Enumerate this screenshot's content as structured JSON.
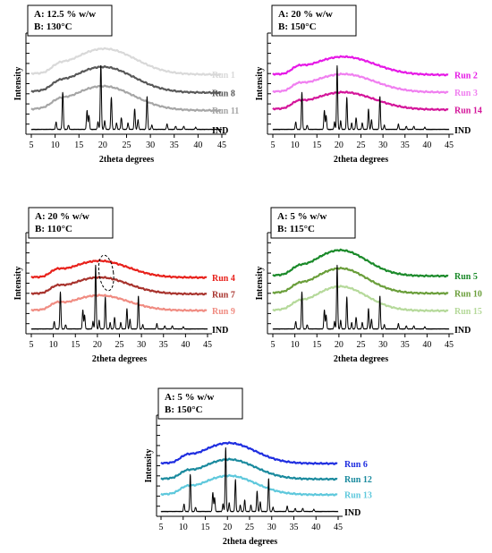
{
  "chart_data": [
    {
      "type": "line",
      "legend": [
        "A: 12.5 % w/w",
        "B: 130°C"
      ],
      "xlabel": "2theta degrees",
      "ylabel": "Intensity",
      "xlim": [
        5,
        45
      ],
      "x_ticks": [
        5,
        10,
        15,
        20,
        25,
        30,
        35,
        40,
        45
      ],
      "series": [
        {
          "name": "Run 1",
          "kind": "amorphous",
          "color": "#d9d9d9",
          "offset": 3,
          "hump_center": 20.3,
          "hump_height": 1.7,
          "hump_width": 6.5,
          "base_level": 0.55
        },
        {
          "name": "Run 8",
          "kind": "amorphous",
          "color": "#595959",
          "offset": 2,
          "hump_center": 20.0,
          "hump_height": 1.7,
          "hump_width": 6.5,
          "base_level": 0.4
        },
        {
          "name": "Run 11",
          "kind": "amorphous",
          "color": "#a6a6a6",
          "offset": 1,
          "hump_center": 20.0,
          "hump_height": 1.6,
          "hump_width": 6.5,
          "base_level": 0.3
        },
        {
          "name": "IND",
          "kind": "crystalline",
          "color": "#000000",
          "offset": 0
        }
      ]
    },
    {
      "type": "line",
      "legend": [
        "A: 20 % w/w",
        "B: 150°C"
      ],
      "xlabel": "2theta degrees",
      "ylabel": "Intensity",
      "xlim": [
        5,
        45
      ],
      "x_ticks": [
        5,
        10,
        15,
        20,
        25,
        30,
        35,
        40,
        45
      ],
      "series": [
        {
          "name": "Run 2",
          "kind": "amorphous",
          "color": "#e619e6",
          "offset": 3,
          "hump_center": 21.0,
          "hump_height": 1.2,
          "hump_width": 7.0,
          "base_level": 0.5
        },
        {
          "name": "Run 3",
          "kind": "amorphous",
          "color": "#f07ff0",
          "offset": 2,
          "hump_center": 21.0,
          "hump_height": 1.2,
          "hump_width": 7.0,
          "base_level": 0.45
        },
        {
          "name": "Run 14",
          "kind": "amorphous",
          "color": "#d4159a",
          "offset": 1,
          "hump_center": 21.0,
          "hump_height": 1.15,
          "hump_width": 7.0,
          "base_level": 0.4
        },
        {
          "name": "IND",
          "kind": "crystalline",
          "color": "#000000",
          "offset": 0
        }
      ]
    },
    {
      "type": "line",
      "legend": [
        "A: 20 % w/w",
        "B: 110°C"
      ],
      "xlabel": "2theta degrees",
      "ylabel": "Intensity",
      "xlim": [
        5,
        45
      ],
      "x_ticks": [
        5,
        10,
        15,
        20,
        25,
        30,
        35,
        40,
        45
      ],
      "annotation": "dashed ellipse near 22 degrees",
      "series": [
        {
          "name": "Run 4",
          "kind": "amorphous",
          "color": "#e8211b",
          "offset": 3,
          "hump_center": 20.5,
          "hump_height": 1.1,
          "hump_width": 6.5,
          "base_level": 0.45
        },
        {
          "name": "Run 7",
          "kind": "amorphous",
          "color": "#a8332d",
          "offset": 2,
          "hump_center": 20.5,
          "hump_height": 1.1,
          "hump_width": 6.5,
          "base_level": 0.4
        },
        {
          "name": "Run 9",
          "kind": "amorphous",
          "color": "#f08c82",
          "offset": 1,
          "hump_center": 20.5,
          "hump_height": 1.0,
          "hump_width": 6.5,
          "base_level": 0.35
        },
        {
          "name": "IND",
          "kind": "crystalline",
          "color": "#000000",
          "offset": 0
        }
      ]
    },
    {
      "type": "line",
      "legend": [
        "A: 5 % w/w",
        "B: 115°C"
      ],
      "xlabel": "2theta degrees",
      "ylabel": "Intensity",
      "xlim": [
        5,
        45
      ],
      "x_ticks": [
        5,
        10,
        15,
        20,
        25,
        30,
        35,
        40,
        45
      ],
      "series": [
        {
          "name": "Run 5",
          "kind": "amorphous",
          "color": "#1b8a2a",
          "offset": 3,
          "hump_center": 20.3,
          "hump_height": 1.7,
          "hump_width": 6.0,
          "base_level": 0.3
        },
        {
          "name": "Run 10",
          "kind": "amorphous",
          "color": "#6a9e3a",
          "offset": 2,
          "hump_center": 20.3,
          "hump_height": 1.65,
          "hump_width": 6.0,
          "base_level": 0.25
        },
        {
          "name": "Run 15",
          "kind": "amorphous",
          "color": "#b5d99a",
          "offset": 1,
          "hump_center": 20.3,
          "hump_height": 1.6,
          "hump_width": 6.0,
          "base_level": 0.2
        },
        {
          "name": "IND",
          "kind": "crystalline",
          "color": "#000000",
          "offset": 0
        }
      ]
    },
    {
      "type": "line",
      "legend": [
        "A: 5 % w/w",
        "B: 150°C"
      ],
      "xlabel": "2theta degrees",
      "ylabel": "Intensity",
      "xlim": [
        5,
        45
      ],
      "x_ticks": [
        5,
        10,
        15,
        20,
        25,
        30,
        35,
        40,
        45
      ],
      "series": [
        {
          "name": "Run 6",
          "kind": "amorphous",
          "color": "#1f2ee0",
          "offset": 3,
          "hump_center": 20.3,
          "hump_height": 1.35,
          "hump_width": 6.0,
          "base_level": 0.35
        },
        {
          "name": "Run 12",
          "kind": "amorphous",
          "color": "#1a8a9e",
          "offset": 2,
          "hump_center": 20.3,
          "hump_height": 1.3,
          "hump_width": 6.0,
          "base_level": 0.3
        },
        {
          "name": "Run 13",
          "kind": "amorphous",
          "color": "#5ec8dc",
          "offset": 1,
          "hump_center": 20.3,
          "hump_height": 1.25,
          "hump_width": 6.0,
          "base_level": 0.25
        },
        {
          "name": "IND",
          "kind": "crystalline",
          "color": "#000000",
          "offset": 0
        }
      ]
    }
  ],
  "reference_peaks": [
    [
      10.2,
      0.35
    ],
    [
      11.6,
      1.75
    ],
    [
      12.8,
      0.2
    ],
    [
      16.7,
      0.9
    ],
    [
      17.1,
      0.65
    ],
    [
      19.0,
      0.35
    ],
    [
      19.6,
      3.0
    ],
    [
      20.4,
      0.4
    ],
    [
      21.8,
      1.5
    ],
    [
      22.9,
      0.3
    ],
    [
      23.9,
      0.55
    ],
    [
      25.3,
      0.3
    ],
    [
      26.7,
      0.95
    ],
    [
      27.4,
      0.45
    ],
    [
      29.3,
      1.55
    ],
    [
      30.3,
      0.2
    ],
    [
      33.5,
      0.25
    ],
    [
      35.3,
      0.15
    ],
    [
      37.0,
      0.15
    ],
    [
      39.5,
      0.1
    ]
  ]
}
